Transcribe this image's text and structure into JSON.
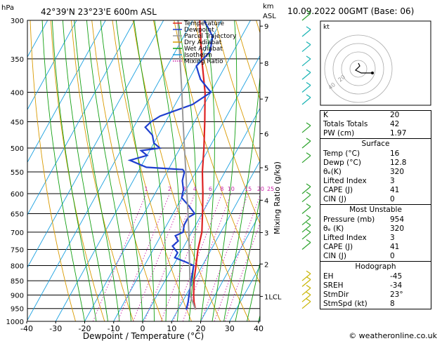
{
  "header": {
    "hpa_label": "hPa",
    "location": "42°39'N  23°23'E  600m  ASL",
    "km_label": "km",
    "asl_label": "ASL",
    "datetime": "10.09.2022  00GMT  (Base: 06)"
  },
  "footer": {
    "credit": "© weatheronline.co.uk"
  },
  "legend": {
    "items": [
      {
        "label": "Temperature",
        "color": "#dd2222",
        "style": "solid"
      },
      {
        "label": "Dewpoint",
        "color": "#1f3fcf",
        "style": "solid"
      },
      {
        "label": "Parcel Trajectory",
        "color": "#999999",
        "style": "solid"
      },
      {
        "label": "Dry Adiabat",
        "color": "#d99a00",
        "style": "solid"
      },
      {
        "label": "Wet Adiabat",
        "color": "#12a012",
        "style": "solid"
      },
      {
        "label": "Isotherm",
        "color": "#1aa0e0",
        "style": "solid"
      },
      {
        "label": "Mixing Ratio",
        "color": "#cc22aa",
        "style": "dotted"
      }
    ]
  },
  "hodograph": {
    "label": "kt",
    "ring_labels": [
      "40",
      "20"
    ]
  },
  "chart_data": {
    "type": "line",
    "title": "",
    "xlabel": "Dewpoint / Temperature (°C)",
    "ylabel_right": "Mixing Ratio (g/kg)",
    "x_ticks": [
      -40,
      -30,
      -20,
      -10,
      0,
      10,
      20,
      30,
      40
    ],
    "p_ticks": [
      300,
      350,
      400,
      450,
      500,
      550,
      600,
      650,
      700,
      750,
      800,
      850,
      900,
      950,
      1000
    ],
    "km_ticks": [
      {
        "label": "9",
        "p": 307
      },
      {
        "label": "8",
        "p": 356
      },
      {
        "label": "7",
        "p": 411
      },
      {
        "label": "6",
        "p": 472
      },
      {
        "label": "5",
        "p": 541
      },
      {
        "label": "4",
        "p": 616
      },
      {
        "label": "3",
        "p": 701
      },
      {
        "label": "2",
        "p": 795
      },
      {
        "label": "1LCL",
        "p": 905
      }
    ],
    "mixing_ratio_labels": [
      "1",
      "2",
      "3",
      "4",
      "6",
      "8",
      "10",
      "15",
      "20",
      "25"
    ],
    "series": [
      {
        "name": "Temperature",
        "color": "#dd2222",
        "points": [
          [
            954,
            16
          ],
          [
            925,
            14
          ],
          [
            900,
            12.6
          ],
          [
            850,
            10
          ],
          [
            800,
            7.8
          ],
          [
            750,
            5.4
          ],
          [
            700,
            3.5
          ],
          [
            650,
            0.2
          ],
          [
            600,
            -3.5
          ],
          [
            550,
            -7.8
          ],
          [
            500,
            -11.8
          ],
          [
            450,
            -16.5
          ],
          [
            400,
            -22
          ],
          [
            350,
            -29.5
          ],
          [
            300,
            -37.5
          ]
        ]
      },
      {
        "name": "Dewpoint",
        "color": "#1f3fcf",
        "points": [
          [
            954,
            12.8
          ],
          [
            925,
            12
          ],
          [
            900,
            11
          ],
          [
            850,
            9
          ],
          [
            800,
            7
          ],
          [
            790,
            4
          ],
          [
            775,
            -1
          ],
          [
            760,
            -1
          ],
          [
            740,
            -4
          ],
          [
            725,
            -3
          ],
          [
            710,
            -5
          ],
          [
            700,
            -3
          ],
          [
            680,
            -4
          ],
          [
            660,
            -4
          ],
          [
            650,
            -2.5
          ],
          [
            630,
            -6
          ],
          [
            610,
            -10
          ],
          [
            590,
            -11
          ],
          [
            570,
            -13
          ],
          [
            550,
            -14
          ],
          [
            545,
            -15
          ],
          [
            540,
            -28
          ],
          [
            525,
            -35
          ],
          [
            515,
            -30
          ],
          [
            505,
            -33
          ],
          [
            500,
            -27
          ],
          [
            490,
            -30
          ],
          [
            475,
            -32
          ],
          [
            460,
            -36
          ],
          [
            450,
            -35
          ],
          [
            440,
            -33
          ],
          [
            420,
            -24
          ],
          [
            400,
            -20
          ],
          [
            380,
            -26
          ],
          [
            370,
            -28
          ],
          [
            360,
            -30
          ],
          [
            340,
            -28
          ],
          [
            320,
            -30
          ],
          [
            300,
            -36
          ]
        ]
      },
      {
        "name": "Parcel Trajectory",
        "color": "#999999",
        "points": [
          [
            954,
            16
          ],
          [
            905,
            11.8
          ],
          [
            850,
            8.6
          ],
          [
            800,
            5.6
          ],
          [
            750,
            2.4
          ],
          [
            700,
            -1
          ],
          [
            650,
            -4.8
          ],
          [
            600,
            -9
          ],
          [
            550,
            -13.5
          ],
          [
            500,
            -18.5
          ],
          [
            450,
            -24
          ],
          [
            400,
            -30
          ],
          [
            350,
            -37
          ],
          [
            300,
            -45
          ]
        ]
      }
    ]
  },
  "winds": {
    "color_green": "#2ea32e",
    "color_cyan": "#19b3b3",
    "color_yellow": "#c8b400"
  },
  "stats": {
    "top": [
      {
        "k": "K",
        "v": "20"
      },
      {
        "k": "Totals Totals",
        "v": "42"
      },
      {
        "k": "PW (cm)",
        "v": "1.97"
      }
    ],
    "surface_title": "Surface",
    "surface": [
      {
        "k": "Temp (°C)",
        "v": "16"
      },
      {
        "k": "Dewp (°C)",
        "v": "12.8"
      },
      {
        "k": "θₑ(K)",
        "v": "320"
      },
      {
        "k": "Lifted Index",
        "v": "3"
      },
      {
        "k": "CAPE (J)",
        "v": "41"
      },
      {
        "k": "CIN (J)",
        "v": "0"
      }
    ],
    "mu_title": "Most Unstable",
    "mu": [
      {
        "k": "Pressure (mb)",
        "v": "954"
      },
      {
        "k": "θₑ (K)",
        "v": "320"
      },
      {
        "k": "Lifted Index",
        "v": "3"
      },
      {
        "k": "CAPE (J)",
        "v": "41"
      },
      {
        "k": "CIN (J)",
        "v": "0"
      }
    ],
    "hodo_title": "Hodograph",
    "hodo": [
      {
        "k": "EH",
        "v": "-45"
      },
      {
        "k": "SREH",
        "v": "-34"
      },
      {
        "k": "StmDir",
        "v": "23°"
      },
      {
        "k": "StmSpd (kt)",
        "v": "8"
      }
    ]
  }
}
